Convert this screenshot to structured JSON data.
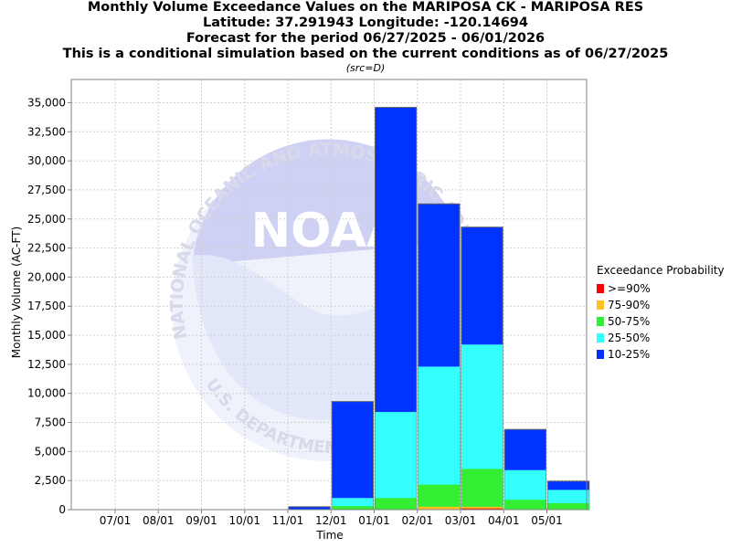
{
  "titles": [
    "Monthly Volume Exceedance Values on the MARIPOSA CK - MARIPOSA RES",
    "Latitude: 37.291943 Longitude: -120.14694",
    "Forecast for the period 06/27/2025 - 06/01/2026",
    "This is a conditional simulation based on the current conditions as of 06/27/2025"
  ],
  "source_note": "(src=D)",
  "watermark": {
    "logo_text": "NOAA",
    "ring_text": "NATIONAL OCEANIC AND ATMOSPHERIC ADMINISTRATION",
    "bottom_text": "U.S. DEPARTMENT OF COMMERCE"
  },
  "legend": {
    "title": "Exceedance Probability",
    "items": [
      {
        "label": ">=90%",
        "color": "#ff0000"
      },
      {
        "label": "75-90%",
        "color": "#ffc020"
      },
      {
        "label": "50-75%",
        "color": "#33ee33"
      },
      {
        "label": "25-50%",
        "color": "#33ffff"
      },
      {
        "label": "10-25%",
        "color": "#0033ff"
      }
    ]
  },
  "chart_data": {
    "type": "bar",
    "stacked": "overlay",
    "xlabel": "Time",
    "ylabel": "Monthly Volume (AC-FT)",
    "ylim": [
      0,
      37000
    ],
    "yticks": [
      0,
      2500,
      5000,
      7500,
      10000,
      12500,
      15000,
      17500,
      20000,
      22500,
      25000,
      27500,
      30000,
      32500,
      35000
    ],
    "ytick_labels": [
      "0",
      "2,500",
      "5,000",
      "7,500",
      "10,000",
      "12,500",
      "15,000",
      "17,500",
      "20,000",
      "22,500",
      "25,000",
      "27,500",
      "30,000",
      "32,500",
      "35,000"
    ],
    "categories": [
      "07/01",
      "08/01",
      "09/01",
      "10/01",
      "11/01",
      "12/01",
      "01/01",
      "02/01",
      "03/01",
      "04/01",
      "05/01"
    ],
    "grid": true,
    "legend_position": "right",
    "series": [
      {
        "name": "10-25%",
        "color": "#0033ff",
        "values": [
          0,
          0,
          0,
          0,
          250,
          9300,
          34600,
          26300,
          24300,
          6900,
          2450
        ]
      },
      {
        "name": "25-50%",
        "color": "#33ffff",
        "values": [
          0,
          0,
          0,
          0,
          0,
          1000,
          8400,
          12300,
          14200,
          3400,
          1700
        ]
      },
      {
        "name": "50-75%",
        "color": "#33ee33",
        "values": [
          0,
          0,
          0,
          0,
          0,
          300,
          1000,
          2150,
          3500,
          850,
          550
        ]
      },
      {
        "name": "75-90%",
        "color": "#ffc020",
        "values": [
          0,
          0,
          0,
          0,
          0,
          0,
          0,
          250,
          250,
          0,
          0
        ]
      },
      {
        "name": ">=90%",
        "color": "#ff0000",
        "values": [
          0,
          0,
          0,
          0,
          0,
          0,
          0,
          0,
          100,
          0,
          0
        ]
      }
    ]
  }
}
